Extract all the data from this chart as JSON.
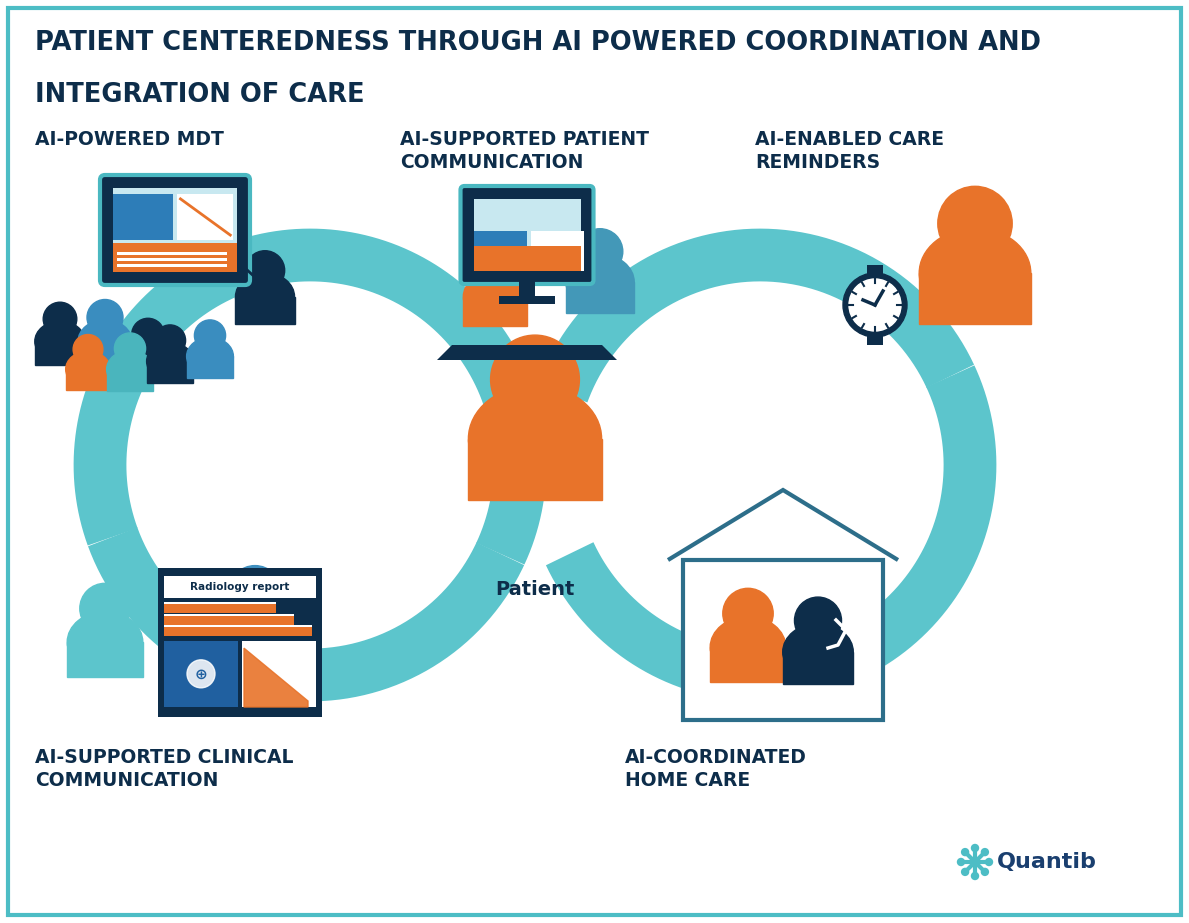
{
  "title_line1": "PATIENT CENTEREDNESS THROUGH AI POWERED COORDINATION AND",
  "title_line2": "INTEGRATION OF CARE",
  "title_color": "#0d2d4a",
  "bg_color": "#ffffff",
  "border_color": "#4dbdc5",
  "label_top_left": "AI-POWERED MDT",
  "label_top_center": "AI-SUPPORTED PATIENT\nCOMMUNICATION",
  "label_top_right": "AI-ENABLED CARE\nREMINDERS",
  "label_bot_left": "AI-SUPPORTED CLINICAL\nCOMMUNICATION",
  "label_bot_right": "AI-COORDINATED\nHOME CARE",
  "patient_label": "Patient",
  "orange": "#E8732A",
  "teal_light": "#5cc5cc",
  "teal_mid": "#4ab5bd",
  "blue_mid": "#3e8fbf",
  "blue_dark": "#1a5f7a",
  "dark_navy": "#0d2d4a",
  "dark_slate": "#1f3d52",
  "quantib_blue": "#1a3f6f"
}
